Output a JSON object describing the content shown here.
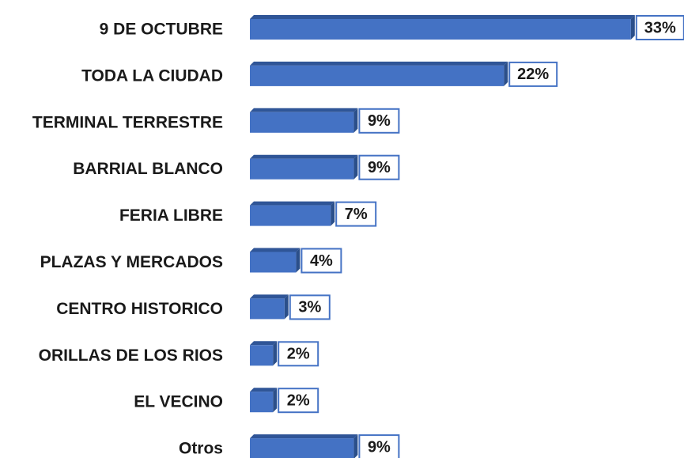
{
  "chart_data": {
    "type": "bar",
    "orientation": "horizontal",
    "categories": [
      "9 DE OCTUBRE",
      "TODA LA CIUDAD",
      "TERMINAL TERRESTRE",
      "BARRIAL BLANCO",
      "FERIA LIBRE",
      "PLAZAS Y MERCADOS",
      "CENTRO HISTORICO",
      "ORILLAS DE LOS RIOS",
      "EL VECINO",
      "Otros"
    ],
    "values": [
      33,
      22,
      9,
      9,
      7,
      4,
      3,
      2,
      2,
      9
    ],
    "value_labels": [
      "33%",
      "22%",
      "9%",
      "9%",
      "7%",
      "4%",
      "3%",
      "2%",
      "2%",
      "9%"
    ],
    "color": "#4472c4"
  }
}
